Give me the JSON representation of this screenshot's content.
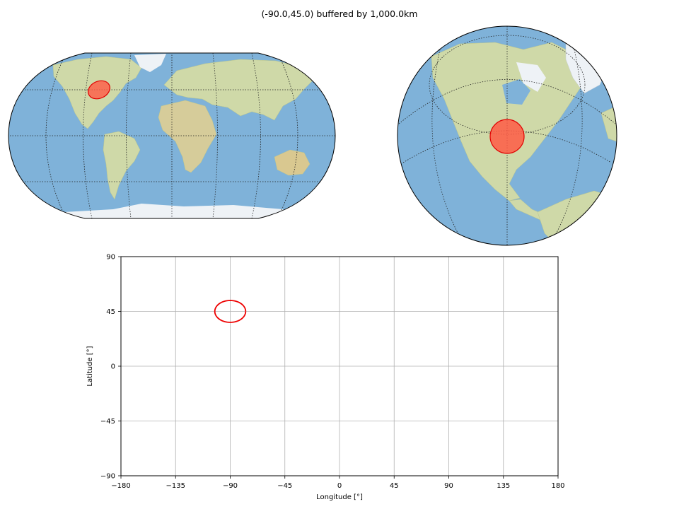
{
  "title": "(-90.0,45.0) buffered by 1,000.0km",
  "maps": [
    {
      "name": "Robinson world map",
      "projection": "Robinson",
      "buffer_fill": "#ff5a45",
      "buffer_edge": "#e00000"
    },
    {
      "name": "Orthographic globe",
      "projection": "Orthographic",
      "center": [
        -90,
        45
      ],
      "buffer_fill": "#ff5a45",
      "buffer_edge": "#e00000"
    }
  ],
  "colors": {
    "ocean": "#7fb2d9",
    "land": "#cfd9a8",
    "ice": "#eef2f6",
    "buffer": "#e00000"
  },
  "chart_data": {
    "type": "line",
    "title": "",
    "xlabel": "Longitude [°]",
    "ylabel": "Latitude [°]",
    "xlim": [
      -180,
      180
    ],
    "ylim": [
      -90,
      90
    ],
    "xticks": [
      -180,
      -135,
      -90,
      -45,
      0,
      45,
      90,
      135,
      180
    ],
    "yticks": [
      -90,
      -45,
      0,
      45,
      90
    ],
    "xtick_labels": [
      "−180",
      "−135",
      "−90",
      "−45",
      "0",
      "45",
      "90",
      "135",
      "180"
    ],
    "ytick_labels": [
      "−90",
      "−45",
      "0",
      "45",
      "90"
    ],
    "grid": true,
    "series": [
      {
        "center": [
          -90.0,
          45.0
        ],
        "radius_km": 1000.0,
        "color": "#ee0000"
      }
    ]
  }
}
